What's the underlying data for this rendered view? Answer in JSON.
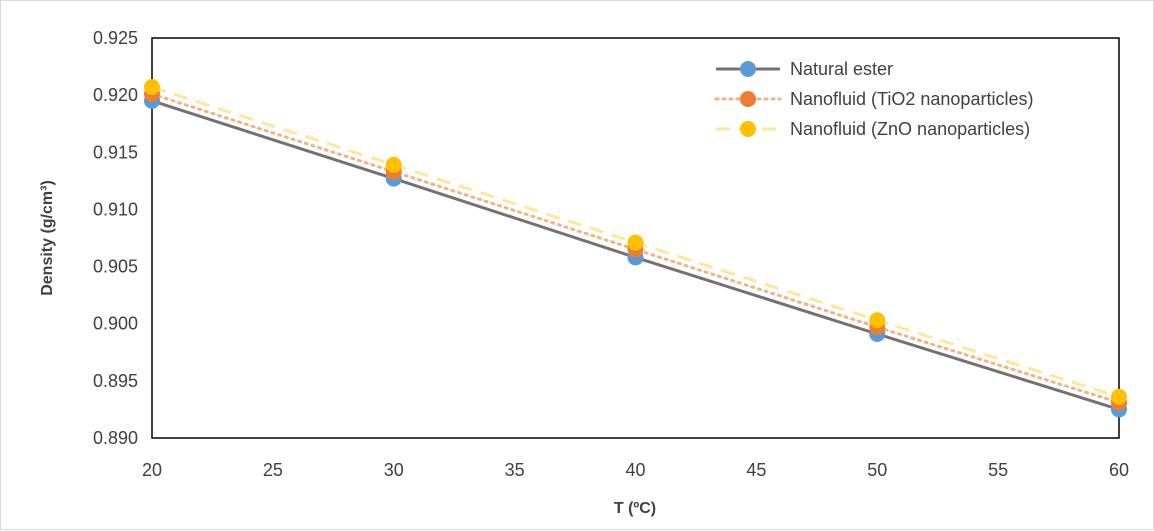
{
  "chart_data": {
    "type": "line",
    "xlabel": "T (ºC)",
    "ylabel": "Density  (g/cm³)",
    "xlim": [
      20,
      60
    ],
    "ylim": [
      0.89,
      0.925
    ],
    "x_ticks": [
      "20",
      "25",
      "30",
      "35",
      "40",
      "45",
      "50",
      "55",
      "60"
    ],
    "y_ticks": [
      "0.890",
      "0.895",
      "0.900",
      "0.905",
      "0.910",
      "0.915",
      "0.920",
      "0.925"
    ],
    "x": [
      20,
      30,
      40,
      50,
      60
    ],
    "grid": false,
    "legend_position": "top-right",
    "series": [
      {
        "name": "Natural ester",
        "values": [
          0.9195,
          0.9127,
          0.9058,
          0.8991,
          0.8925
        ],
        "line_color": "#767171",
        "marker_color": "#5b9bd5",
        "line_style": "solid"
      },
      {
        "name": "Nanofluid (TiO2 nanoparticles)",
        "values": [
          0.9201,
          0.9133,
          0.9065,
          0.8997,
          0.8931
        ],
        "line_color": "#f4b183",
        "marker_color": "#ed7d31",
        "line_style": "dotted"
      },
      {
        "name": "Nanofluid (ZnO nanoparticles)",
        "values": [
          0.9207,
          0.9139,
          0.9071,
          0.9003,
          0.8936
        ],
        "line_color": "#ffe699",
        "marker_color": "#ffc000",
        "line_style": "dashed"
      }
    ]
  }
}
